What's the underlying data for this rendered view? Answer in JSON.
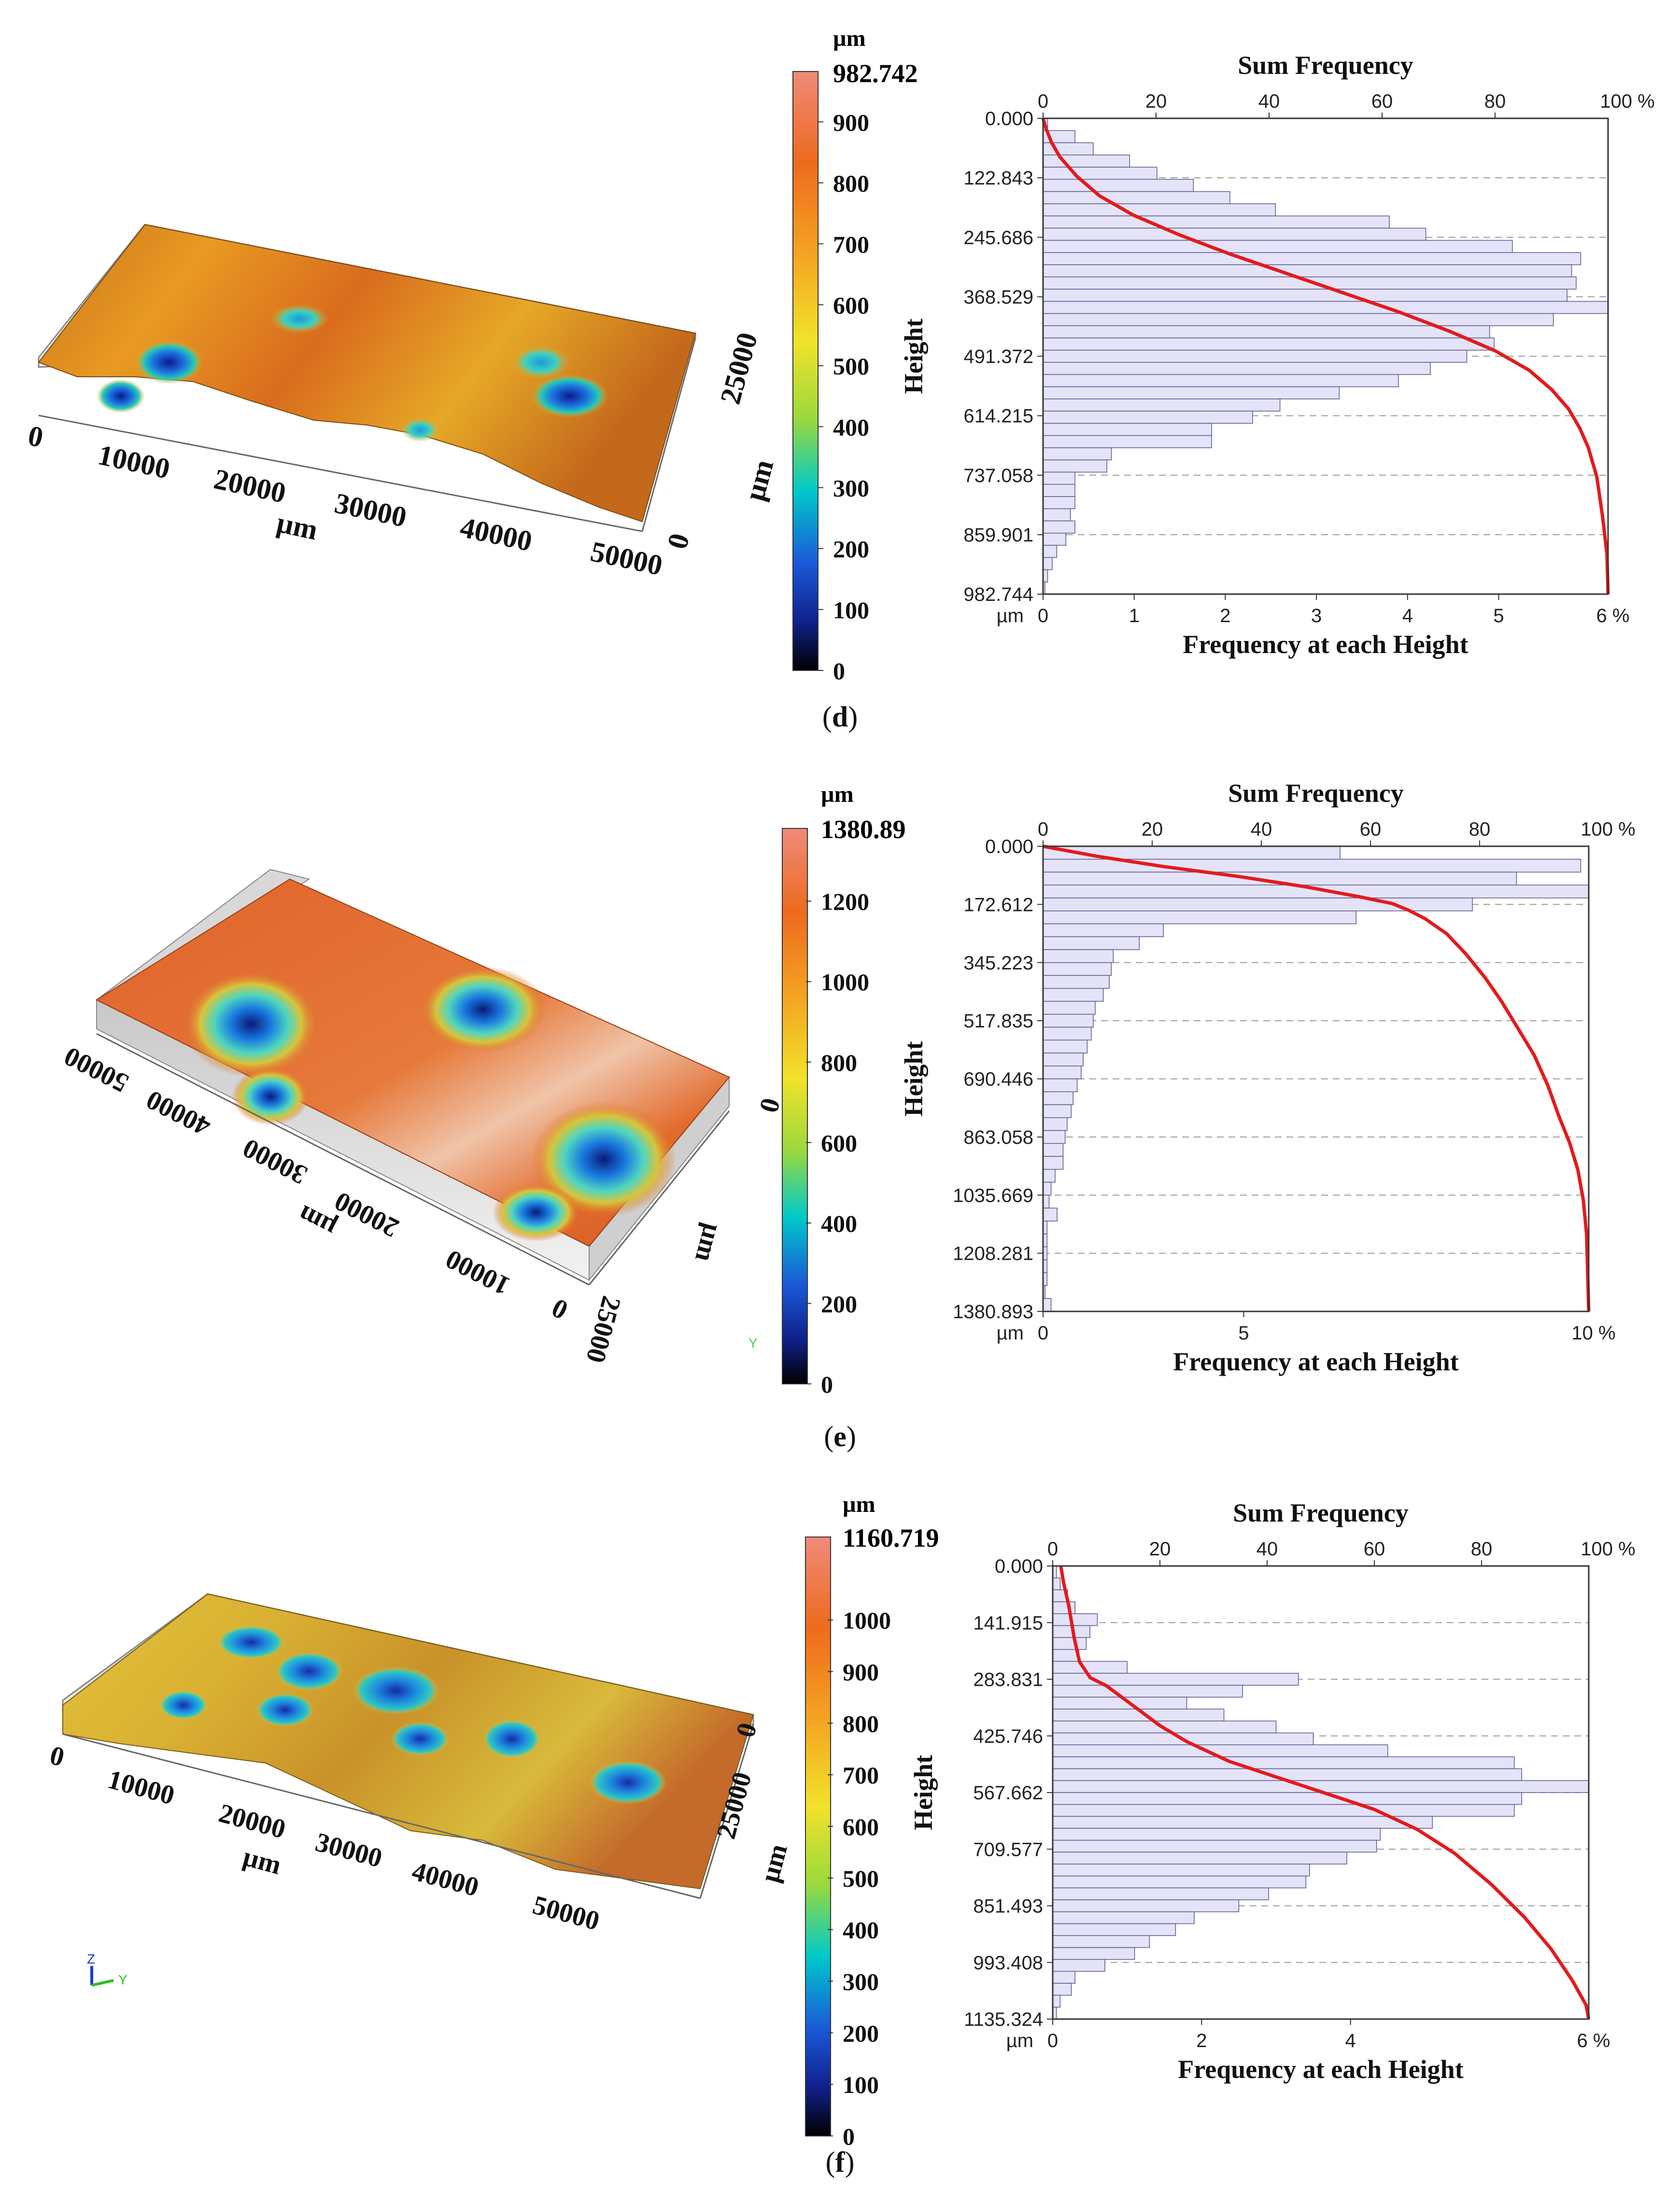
{
  "panels": [
    {
      "caption_letter": "d",
      "surface": {
        "x_ticks": [
          "0",
          "10000",
          "20000",
          "30000",
          "40000",
          "50000"
        ],
        "x_unit": "µm",
        "y_ticks": [
          "0",
          "25000"
        ],
        "y_unit": "µm"
      },
      "colorbar": {
        "unit": "µm",
        "max_label": "982.742",
        "max_value": 982.742,
        "ticks": [
          "0",
          "100",
          "200",
          "300",
          "400",
          "500",
          "600",
          "700",
          "800",
          "900"
        ],
        "tick_values": [
          0,
          100,
          200,
          300,
          400,
          500,
          600,
          700,
          800,
          900
        ]
      },
      "chart_data": {
        "type": "bar",
        "orientation": "horizontal",
        "title": "Sum Frequency",
        "xlabel": "Frequency at each Height",
        "ylabel": "Height",
        "y_unit": "µm",
        "y_ticks": [
          "0.000",
          "122.843",
          "245.686",
          "368.529",
          "491.372",
          "614.215",
          "737.058",
          "859.901",
          "982.744"
        ],
        "ylim": [
          0,
          982.744
        ],
        "bottom_axis": {
          "ticks": [
            "0",
            "1",
            "2",
            "3",
            "4",
            "5"
          ],
          "end_label": "6 %",
          "range": [
            0,
            6.2
          ]
        },
        "top_axis": {
          "ticks": [
            "0",
            "20",
            "40",
            "60",
            "80"
          ],
          "end_label": "100 %",
          "range": [
            0,
            100
          ]
        },
        "series": [
          {
            "name": "Frequency at each Height",
            "type": "bar",
            "values": [
              0.05,
              0.35,
              0.55,
              0.95,
              1.25,
              1.65,
              2.05,
              2.55,
              3.8,
              4.2,
              5.15,
              5.9,
              5.8,
              5.85,
              5.75,
              6.2,
              5.6,
              4.9,
              4.95,
              4.65,
              4.25,
              3.9,
              3.25,
              2.6,
              2.3,
              1.85,
              1.85,
              0.75,
              0.7,
              0.35,
              0.35,
              0.35,
              0.3,
              0.35,
              0.25,
              0.15,
              0.1,
              0.05,
              0.02
            ]
          },
          {
            "name": "Sum Frequency",
            "type": "line",
            "x": [
              0,
              0.5,
              1.5,
              3,
              6,
              10,
              16,
              24,
              33,
              43,
              53,
              63,
              72,
              80,
              86,
              90,
              93,
              95,
              96.5,
              98,
              99,
              99.8,
              100
            ],
            "y": [
              0,
              20,
              50,
              80,
              120,
              160,
              200,
              240,
              280,
              320,
              360,
              400,
              440,
              480,
              520,
              560,
              600,
              640,
              680,
              740,
              820,
              900,
              982.7
            ]
          }
        ]
      }
    },
    {
      "caption_letter": "e",
      "surface": {
        "x_ticks": [
          "0",
          "10000",
          "20000",
          "30000",
          "40000",
          "50000"
        ],
        "x_unit": "µm",
        "y_ticks": [
          "0",
          "25000"
        ],
        "y_unit": "µm",
        "axis_marker": "Y"
      },
      "colorbar": {
        "unit": "µm",
        "max_label": "1380.89",
        "max_value": 1380.89,
        "ticks": [
          "0",
          "200",
          "400",
          "600",
          "800",
          "1000",
          "1200"
        ],
        "tick_values": [
          0,
          200,
          400,
          600,
          800,
          1000,
          1200
        ]
      },
      "chart_data": {
        "type": "bar",
        "orientation": "horizontal",
        "title": "Sum Frequency",
        "xlabel": "Frequency at each Height",
        "ylabel": "Height",
        "y_unit": "µm",
        "y_ticks": [
          "0.000",
          "172.612",
          "345.223",
          "517.835",
          "690.446",
          "863.058",
          "1035.669",
          "1208.281",
          "1380.893"
        ],
        "ylim": [
          0,
          1380.893
        ],
        "bottom_axis": {
          "ticks": [
            "0",
            "5"
          ],
          "end_label": "10 %",
          "range": [
            0,
            13.6
          ]
        },
        "top_axis": {
          "ticks": [
            "0",
            "20",
            "40",
            "60",
            "80"
          ],
          "end_label": "100 %",
          "range": [
            0,
            100
          ]
        },
        "series": [
          {
            "name": "Frequency at each Height",
            "type": "bar",
            "values": [
              7.4,
              13.4,
              11.8,
              13.6,
              10.7,
              7.8,
              3.0,
              2.4,
              1.75,
              1.7,
              1.65,
              1.5,
              1.3,
              1.25,
              1.2,
              1.1,
              1.0,
              0.95,
              0.85,
              0.75,
              0.7,
              0.6,
              0.55,
              0.5,
              0.5,
              0.3,
              0.2,
              0.15,
              0.35,
              0.1,
              0.1,
              0.1,
              0.1,
              0.1,
              0.05,
              0.2
            ]
          },
          {
            "name": "Sum Frequency",
            "type": "line",
            "x": [
              0,
              10,
              22,
              36,
              48,
              58,
              64,
              67,
              70,
              74,
              77.5,
              81,
              84,
              87,
              90,
              92.5,
              94.5,
              96.5,
              98,
              99,
              99.6,
              100
            ],
            "y": [
              0,
              30,
              60,
              90,
              120,
              150,
              170,
              190,
              215,
              260,
              320,
              390,
              460,
              540,
              620,
              710,
              800,
              880,
              960,
              1050,
              1150,
              1380.9
            ]
          }
        ]
      }
    },
    {
      "caption_letter": "f",
      "surface": {
        "x_ticks": [
          "0",
          "10000",
          "20000",
          "30000",
          "40000",
          "50000"
        ],
        "x_unit": "µm",
        "y_ticks": [
          "0",
          "25000"
        ],
        "y_unit": "µm",
        "axis_marker_z": "Z",
        "axis_marker_y": "Y"
      },
      "colorbar": {
        "unit": "µm",
        "max_label": "1160.719",
        "max_value": 1160.719,
        "ticks": [
          "0",
          "100",
          "200",
          "300",
          "400",
          "500",
          "600",
          "700",
          "800",
          "900",
          "1000"
        ],
        "tick_values": [
          0,
          100,
          200,
          300,
          400,
          500,
          600,
          700,
          800,
          900,
          1000
        ]
      },
      "chart_data": {
        "type": "bar",
        "orientation": "horizontal",
        "title": "Sum Frequency",
        "xlabel": "Frequency at each Height",
        "ylabel": "Height",
        "y_unit": "µm",
        "y_ticks": [
          "0.000",
          "141.915",
          "283.831",
          "425.746",
          "567.662",
          "709.577",
          "851.493",
          "993.408",
          "1135.324"
        ],
        "ylim": [
          0,
          1135.324
        ],
        "bottom_axis": {
          "ticks": [
            "0",
            "2",
            "4"
          ],
          "end_label": "6 %",
          "range": [
            0,
            7.2
          ]
        },
        "top_axis": {
          "ticks": [
            "0",
            "20",
            "40",
            "60",
            "80"
          ],
          "end_label": "100 %",
          "range": [
            0,
            100
          ]
        },
        "series": [
          {
            "name": "Frequency at each Height",
            "type": "bar",
            "values": [
              0.05,
              0.1,
              0.2,
              0.3,
              0.6,
              0.5,
              0.45,
              0.35,
              1.0,
              3.3,
              2.55,
              1.8,
              2.3,
              3.0,
              3.5,
              4.5,
              6.2,
              6.3,
              7.2,
              6.3,
              6.2,
              5.1,
              4.4,
              4.35,
              3.95,
              3.45,
              3.4,
              2.9,
              2.5,
              1.9,
              1.65,
              1.3,
              1.1,
              0.7,
              0.3,
              0.25,
              0.1,
              0.05
            ]
          },
          {
            "name": "Sum Frequency",
            "type": "line",
            "x": [
              1.5,
              2,
              3,
              4,
              5,
              6,
              7,
              10,
              13,
              16,
              20,
              25,
              33,
              42,
              51,
              60,
              68,
              75,
              82,
              88,
              93,
              97,
              99.5,
              100
            ],
            "y": [
              0,
              40,
              100,
              180,
              240,
              260,
              280,
              300,
              330,
              360,
              400,
              440,
              490,
              530,
              570,
              610,
              660,
              720,
              800,
              880,
              960,
              1040,
              1100,
              1135.3
            ]
          }
        ]
      }
    }
  ],
  "colors": {
    "bar_fill": "#e4e3f8",
    "bar_stroke": "#5a5a8c",
    "curve": "#e41a1c",
    "grid": "#9a9a9a"
  }
}
